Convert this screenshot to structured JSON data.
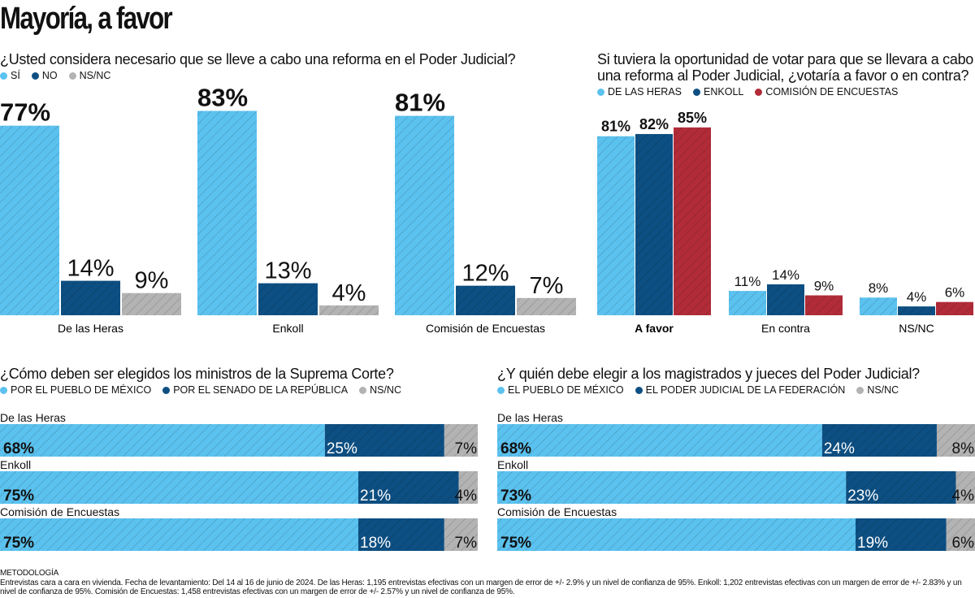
{
  "title": "Mayoría, a favor",
  "colors": {
    "light_blue": "#5bc2ef",
    "dark_blue": "#0d4f82",
    "gray": "#b3b3b3",
    "red": "#b12c38"
  },
  "chart_data": [
    {
      "type": "bar",
      "title": "¿Usted considera necesario que se lleve a cabo una reforma en el Poder Judicial?",
      "categories": [
        "De las Heras",
        "Enkoll",
        "Comisión de Encuestas"
      ],
      "series": [
        {
          "name": "SÍ",
          "values": [
            77,
            83,
            81
          ],
          "color": "#5bc2ef"
        },
        {
          "name": "NO",
          "values": [
            14,
            13,
            12
          ],
          "color": "#0d4f82"
        },
        {
          "name": "NS/NC",
          "values": [
            9,
            4,
            7
          ],
          "color": "#b3b3b3"
        }
      ],
      "unit": "%",
      "ylim": [
        0,
        100
      ],
      "grid": false,
      "legend": "top-left"
    },
    {
      "type": "bar",
      "title": "Si tuviera la oportunidad de votar para que se llevara a cabo una reforma al Poder Judicial, ¿votaría a favor o en contra?",
      "categories": [
        "A favor",
        "En contra",
        "NS/NC"
      ],
      "series": [
        {
          "name": "DE LAS HERAS",
          "values": [
            81,
            11,
            8
          ],
          "color": "#5bc2ef"
        },
        {
          "name": "ENKOLL",
          "values": [
            82,
            14,
            4
          ],
          "color": "#0d4f82"
        },
        {
          "name": "COMISIÓN DE ENCUESTAS",
          "values": [
            85,
            9,
            6
          ],
          "color": "#b12c38"
        }
      ],
      "unit": "%",
      "ylim": [
        0,
        100
      ],
      "grid": false,
      "legend": "top-left"
    },
    {
      "type": "bar",
      "orientation": "horizontal-stacked",
      "title": "¿Cómo deben ser elegidos los ministros de la Suprema Corte?",
      "categories": [
        "De las Heras",
        "Enkoll",
        "Comisión de Encuestas"
      ],
      "series": [
        {
          "name": "POR EL PUEBLO DE MÉXICO",
          "values": [
            68,
            75,
            75
          ],
          "color": "#5bc2ef"
        },
        {
          "name": "POR EL SENADO DE LA REPÚBLICA",
          "values": [
            25,
            21,
            18
          ],
          "color": "#0d4f82"
        },
        {
          "name": "NS/NC",
          "values": [
            7,
            4,
            7
          ],
          "color": "#b3b3b3"
        }
      ],
      "unit": "%",
      "xlim": [
        0,
        100
      ],
      "legend": "top-left"
    },
    {
      "type": "bar",
      "orientation": "horizontal-stacked",
      "title": "¿Y quién debe elegir a los magistrados y jueces del Poder Judicial?",
      "categories": [
        "De las Heras",
        "Enkoll",
        "Comisión de Encuestas"
      ],
      "series": [
        {
          "name": "EL PUEBLO DE MÉXICO",
          "values": [
            68,
            73,
            75
          ],
          "color": "#5bc2ef"
        },
        {
          "name": "EL PODER JUDICIAL DE LA FEDERACIÓN",
          "values": [
            24,
            23,
            19
          ],
          "color": "#0d4f82"
        },
        {
          "name": "NS/NC",
          "values": [
            8,
            4,
            6
          ],
          "color": "#b3b3b3"
        }
      ],
      "unit": "%",
      "xlim": [
        0,
        100
      ],
      "legend": "top-left"
    }
  ],
  "methodology": {
    "heading": "METODOLOGÍA",
    "text": "Entrevistas cara a cara en vivienda. Fecha de levantamiento: Del 14 al 16 de junio de 2024. De las Heras: 1,195 entrevistas efectivas con un margen de error de +/- 2.9% y un nivel de confianza de 95%. Enkoll: 1,202 entrevistas efectivas con un margen de error de +/- 2.83% y un nivel de confianza de 95%. Comisión de Encuestas: 1,458 entrevistas efectivas con un margen de error de +/- 2.57% y un nivel de confianza de 95%."
  }
}
